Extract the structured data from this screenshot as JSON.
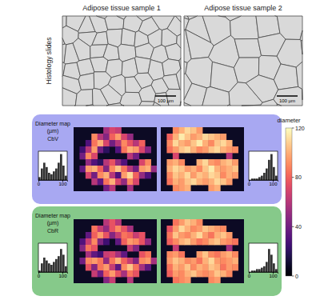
{
  "columns": [
    "Adipose tissue sample 1",
    "Adipose tissue sample 2"
  ],
  "histology": {
    "label": "Histology slides",
    "scale_bars": [
      "100 µm",
      "100 µm"
    ]
  },
  "panels": [
    {
      "label_lines": [
        "Diameter map",
        "(µm)"
      ],
      "method": "CbV",
      "color": "#a8a8f2"
    },
    {
      "label_lines": [
        "Diameter map",
        "(µm)"
      ],
      "method": "CbR",
      "color": "#86c98a"
    }
  ],
  "colorbar": {
    "title": "diameter",
    "range": [
      0,
      120
    ],
    "ticks": [
      0,
      40,
      80,
      120
    ]
  },
  "chart_data": [
    {
      "type": "heatmap",
      "cells": [
        [
          null,
          null,
          null,
          null,
          null,
          55,
          70,
          65,
          null,
          null,
          null,
          null,
          null,
          null
        ],
        [
          null,
          null,
          null,
          90,
          60,
          45,
          80,
          95,
          70,
          50,
          null,
          null,
          null,
          null
        ],
        [
          null,
          null,
          30,
          85,
          100,
          70,
          40,
          60,
          90,
          75,
          60,
          80,
          null,
          null
        ],
        [
          null,
          25,
          60,
          95,
          40,
          20,
          null,
          30,
          85,
          100,
          95,
          70,
          45,
          null
        ],
        [
          null,
          40,
          90,
          70,
          null,
          null,
          null,
          null,
          null,
          60,
          40,
          null,
          null,
          null
        ],
        [
          null,
          null,
          50,
          30,
          20,
          60,
          75,
          50,
          30,
          null,
          null,
          70,
          90,
          null
        ],
        [
          null,
          35,
          95,
          100,
          80,
          45,
          90,
          105,
          85,
          60,
          40,
          95,
          100,
          50
        ],
        [
          null,
          null,
          70,
          40,
          90,
          100,
          60,
          30,
          95,
          110,
          80,
          50,
          30,
          null
        ],
        [
          null,
          null,
          null,
          60,
          35,
          85,
          100,
          70,
          50,
          90,
          70,
          null,
          null,
          null
        ],
        [
          null,
          null,
          null,
          null,
          null,
          40,
          60,
          null,
          null,
          55,
          null,
          null,
          null,
          null
        ]
      ]
    },
    {
      "type": "heatmap",
      "cells": [
        [
          null,
          null,
          90,
          100,
          110,
          105,
          95,
          null,
          null,
          null,
          null,
          null,
          null,
          null
        ],
        [
          null,
          80,
          100,
          115,
          105,
          95,
          100,
          110,
          105,
          100,
          95,
          null,
          null,
          null
        ],
        [
          null,
          90,
          110,
          100,
          95,
          105,
          115,
          100,
          90,
          105,
          110,
          100,
          null,
          null
        ],
        [
          null,
          85,
          95,
          105,
          110,
          100,
          90,
          95,
          105,
          110,
          100,
          95,
          90,
          null
        ],
        [
          null,
          null,
          70,
          null,
          null,
          null,
          null,
          null,
          null,
          null,
          null,
          60,
          null,
          null
        ],
        [
          null,
          95,
          100,
          90,
          null,
          null,
          100,
          110,
          95,
          90,
          100,
          105,
          95,
          null
        ],
        [
          null,
          100,
          110,
          105,
          95,
          100,
          90,
          105,
          115,
          100,
          95,
          100,
          105,
          null
        ],
        [
          null,
          90,
          105,
          100,
          110,
          95,
          105,
          100,
          110,
          105,
          90,
          100,
          95,
          null
        ],
        [
          null,
          85,
          100,
          95,
          105,
          110,
          100,
          95,
          100,
          110,
          105,
          95,
          null,
          null
        ],
        [
          null,
          null,
          90,
          95,
          100,
          null,
          null,
          null,
          95,
          100,
          null,
          null,
          null,
          null
        ]
      ]
    },
    {
      "type": "heatmap",
      "cells": [
        [
          null,
          null,
          null,
          null,
          null,
          60,
          75,
          60,
          null,
          null,
          null,
          null,
          null,
          null
        ],
        [
          null,
          null,
          null,
          85,
          65,
          50,
          75,
          90,
          75,
          55,
          null,
          null,
          null,
          null
        ],
        [
          null,
          null,
          35,
          80,
          95,
          75,
          45,
          65,
          85,
          80,
          65,
          75,
          null,
          null
        ],
        [
          null,
          30,
          65,
          90,
          45,
          25,
          null,
          35,
          80,
          95,
          90,
          75,
          50,
          null
        ],
        [
          null,
          45,
          85,
          75,
          null,
          null,
          null,
          null,
          null,
          65,
          45,
          null,
          null,
          null
        ],
        [
          null,
          null,
          55,
          35,
          25,
          65,
          70,
          55,
          35,
          null,
          null,
          75,
          85,
          null
        ],
        [
          null,
          40,
          90,
          95,
          85,
          50,
          85,
          100,
          80,
          65,
          45,
          90,
          95,
          55
        ],
        [
          null,
          null,
          75,
          45,
          85,
          95,
          65,
          35,
          90,
          105,
          85,
          55,
          35,
          null
        ],
        [
          null,
          null,
          null,
          65,
          40,
          80,
          95,
          75,
          55,
          85,
          75,
          null,
          null,
          null
        ],
        [
          null,
          null,
          null,
          null,
          null,
          45,
          65,
          null,
          null,
          60,
          null,
          null,
          null,
          null
        ]
      ]
    },
    {
      "type": "heatmap",
      "cells": [
        [
          null,
          null,
          85,
          95,
          105,
          100,
          90,
          null,
          null,
          null,
          null,
          null,
          null,
          null
        ],
        [
          null,
          75,
          95,
          110,
          100,
          90,
          95,
          105,
          100,
          95,
          90,
          null,
          null,
          null
        ],
        [
          null,
          85,
          105,
          95,
          90,
          100,
          110,
          95,
          85,
          100,
          105,
          95,
          null,
          null
        ],
        [
          null,
          80,
          90,
          100,
          105,
          95,
          85,
          90,
          100,
          105,
          95,
          90,
          85,
          null
        ],
        [
          null,
          null,
          65,
          null,
          null,
          null,
          null,
          null,
          null,
          null,
          null,
          55,
          null,
          null
        ],
        [
          null,
          90,
          95,
          85,
          null,
          null,
          95,
          105,
          90,
          85,
          95,
          100,
          90,
          null
        ],
        [
          null,
          95,
          105,
          100,
          90,
          95,
          85,
          100,
          110,
          95,
          90,
          95,
          100,
          null
        ],
        [
          null,
          85,
          100,
          95,
          105,
          90,
          100,
          95,
          105,
          100,
          85,
          95,
          90,
          null
        ],
        [
          null,
          80,
          95,
          90,
          100,
          105,
          95,
          90,
          95,
          105,
          100,
          90,
          null,
          null
        ],
        [
          null,
          null,
          85,
          90,
          95,
          null,
          null,
          null,
          90,
          95,
          null,
          null,
          null,
          null
        ]
      ]
    },
    {
      "type": "histogram",
      "bins": [
        0,
        10,
        20,
        30,
        40,
        50,
        60,
        70,
        80,
        90,
        100,
        110,
        120
      ],
      "counts": [
        2,
        8,
        12,
        9,
        5,
        4,
        6,
        8,
        12,
        18,
        10,
        3
      ],
      "xlim": [
        0,
        120
      ],
      "xticks": [
        0,
        100
      ],
      "ylim": [
        0,
        20
      ],
      "tick_labels": "x",
      "color": "#333333"
    },
    {
      "type": "histogram",
      "bins": [
        0,
        10,
        20,
        30,
        40,
        50,
        60,
        70,
        80,
        90,
        100,
        110,
        120
      ],
      "counts": [
        0,
        1,
        1,
        1,
        2,
        3,
        5,
        8,
        14,
        18,
        9,
        3
      ],
      "xlim": [
        0,
        120
      ],
      "xticks": [
        0,
        100
      ],
      "ylim": [
        0,
        20
      ],
      "tick_labels": "x",
      "color": "#333333"
    },
    {
      "type": "histogram",
      "bins": [
        0,
        10,
        20,
        30,
        40,
        50,
        60,
        70,
        80,
        90,
        100,
        110,
        120
      ],
      "counts": [
        1,
        6,
        10,
        8,
        6,
        5,
        7,
        9,
        11,
        16,
        12,
        4
      ],
      "xlim": [
        0,
        120
      ],
      "xticks": [
        0,
        100
      ],
      "ylim": [
        0,
        20
      ],
      "tick_labels": "x",
      "color": "#333333"
    },
    {
      "type": "histogram",
      "bins": [
        0,
        10,
        20,
        30,
        40,
        50,
        60,
        70,
        80,
        90,
        100,
        110,
        120
      ],
      "counts": [
        0,
        1,
        1,
        2,
        2,
        3,
        4,
        7,
        16,
        12,
        6,
        2
      ],
      "xlim": [
        0,
        120
      ],
      "xticks": [
        0,
        100
      ],
      "ylim": [
        0,
        20
      ],
      "tick_labels": "x",
      "color": "#333333"
    }
  ]
}
